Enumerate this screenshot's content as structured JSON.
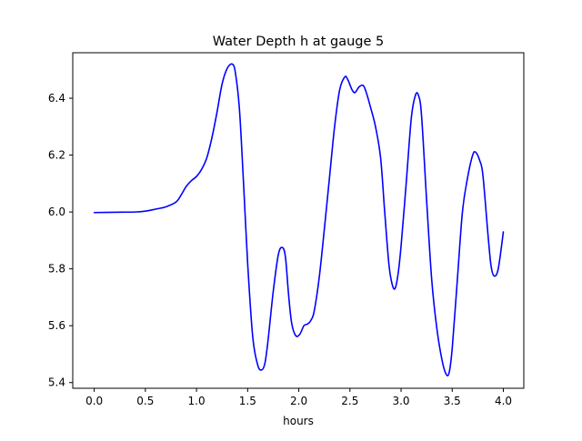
{
  "chart_data": {
    "type": "line",
    "title": "Water Depth h at gauge 5",
    "xlabel": "hours",
    "ylabel": "",
    "xlim": [
      -0.21,
      4.2
    ],
    "ylim": [
      5.38,
      6.56
    ],
    "xticks": [
      0.0,
      0.5,
      1.0,
      1.5,
      2.0,
      2.5,
      3.0,
      3.5,
      4.0
    ],
    "xtick_labels": [
      "0.0",
      "0.5",
      "1.0",
      "1.5",
      "2.0",
      "2.5",
      "3.0",
      "3.5",
      "4.0"
    ],
    "yticks": [
      5.4,
      5.6,
      5.8,
      6.0,
      6.2,
      6.4
    ],
    "ytick_labels": [
      "5.4",
      "5.6",
      "5.8",
      "6.0",
      "6.2",
      "6.4"
    ],
    "grid": false,
    "legend": "none",
    "series": [
      {
        "color": "#0000ff",
        "x": [
          0.0,
          0.2,
          0.4,
          0.5,
          0.6,
          0.7,
          0.8,
          0.85,
          0.9,
          0.95,
          1.0,
          1.05,
          1.1,
          1.15,
          1.2,
          1.25,
          1.3,
          1.35,
          1.38,
          1.42,
          1.46,
          1.5,
          1.55,
          1.6,
          1.64,
          1.67,
          1.7,
          1.75,
          1.8,
          1.84,
          1.87,
          1.9,
          1.93,
          1.97,
          2.01,
          2.05,
          2.08,
          2.1,
          2.12,
          2.15,
          2.2,
          2.25,
          2.3,
          2.35,
          2.4,
          2.45,
          2.48,
          2.52,
          2.55,
          2.59,
          2.63,
          2.66,
          2.7,
          2.75,
          2.8,
          2.84,
          2.88,
          2.91,
          2.94,
          2.97,
          3.0,
          3.05,
          3.1,
          3.14,
          3.17,
          3.2,
          3.25,
          3.3,
          3.35,
          3.4,
          3.44,
          3.47,
          3.5,
          3.55,
          3.6,
          3.65,
          3.7,
          3.73,
          3.77,
          3.8,
          3.85,
          3.88,
          3.91,
          3.95,
          4.0
        ],
        "y": [
          5.998,
          5.999,
          6.0,
          6.003,
          6.01,
          6.018,
          6.035,
          6.06,
          6.09,
          6.11,
          6.125,
          6.15,
          6.19,
          6.26,
          6.35,
          6.45,
          6.505,
          6.52,
          6.49,
          6.36,
          6.1,
          5.82,
          5.56,
          5.46,
          5.445,
          5.47,
          5.55,
          5.72,
          5.85,
          5.875,
          5.84,
          5.71,
          5.61,
          5.565,
          5.57,
          5.6,
          5.605,
          5.61,
          5.62,
          5.65,
          5.77,
          5.94,
          6.12,
          6.3,
          6.43,
          6.475,
          6.465,
          6.43,
          6.42,
          6.44,
          6.445,
          6.42,
          6.37,
          6.3,
          6.19,
          6.0,
          5.82,
          5.75,
          5.73,
          5.78,
          5.88,
          6.1,
          6.33,
          6.41,
          6.41,
          6.34,
          6.04,
          5.76,
          5.59,
          5.48,
          5.43,
          5.435,
          5.52,
          5.76,
          6.0,
          6.12,
          6.2,
          6.21,
          6.18,
          6.13,
          5.92,
          5.81,
          5.775,
          5.8,
          5.93
        ]
      }
    ]
  }
}
